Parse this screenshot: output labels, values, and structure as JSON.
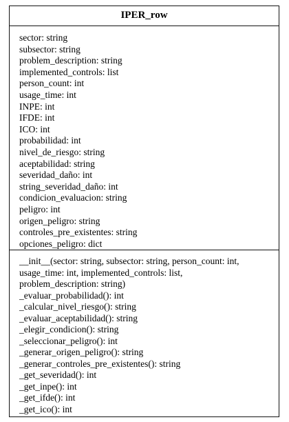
{
  "class_name": "IPER_row",
  "attributes": [
    "sector: string",
    "subsector: string",
    "problem_description: string",
    "implemented_controls: list",
    "person_count: int",
    "usage_time: int",
    "INPE: int",
    "IFDE: int",
    "ICO: int",
    "probabilidad: int",
    "nivel_de_riesgo: string",
    "aceptabilidad: string",
    "severidad_daño: int",
    "string_severidad_daño: int",
    "condicion_evaluacion: string",
    "peligro: int",
    "origen_peligro: string",
    "controles_pre_existentes: string",
    "opciones_peligro: dict"
  ],
  "methods": [
    "__init__(sector: string, subsector: string, person_count: int,",
    "usage_time: int, implemented_controls: list,",
    "problem_description: string)",
    "_evaluar_probabilidad(): int",
    "_calcular_nivel_riesgo(): string",
    "_evaluar_aceptabilidad(): string",
    "_elegir_condicion(): string",
    "_seleccionar_peligro(): int",
    "_generar_origen_peligro(): string",
    "_generar_controles_pre_existentes(): string",
    "_get_severidad(): int",
    "_get_inpe(): int",
    "_get_ifde(): int",
    "_get_ico(): int"
  ]
}
